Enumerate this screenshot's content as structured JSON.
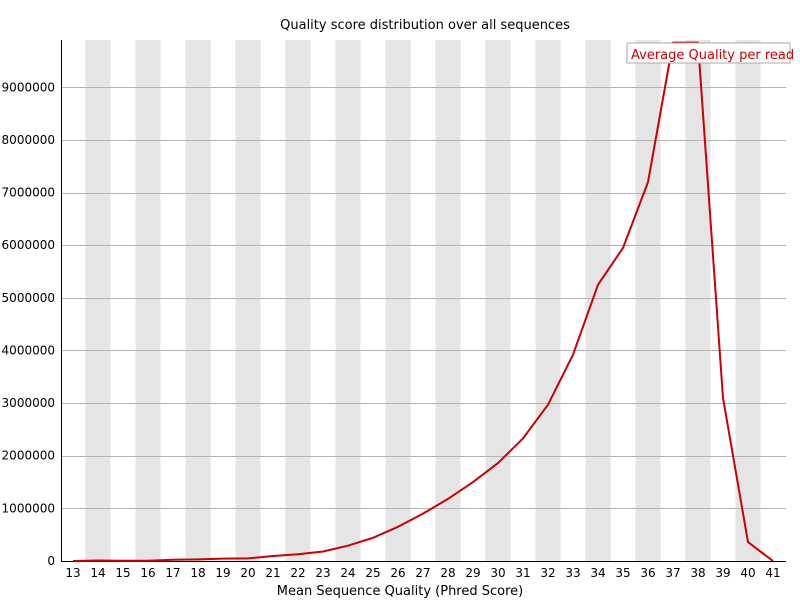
{
  "chart_data": {
    "type": "line",
    "title": "Quality score distribution over all sequences",
    "xlabel": "Mean Sequence Quality (Phred Score)",
    "ylabel": "",
    "x": [
      13,
      14,
      15,
      16,
      17,
      18,
      19,
      20,
      21,
      22,
      23,
      24,
      25,
      26,
      27,
      28,
      29,
      30,
      31,
      32,
      33,
      34,
      35,
      36,
      37,
      38,
      39,
      40,
      41
    ],
    "series": [
      {
        "name": "Average Quality per read",
        "color": "#cc0000",
        "values": [
          0,
          10000,
          5000,
          5000,
          25000,
          30000,
          45000,
          50000,
          95000,
          130000,
          180000,
          290000,
          440000,
          650000,
          900000,
          1180000,
          1500000,
          1860000,
          2330000,
          2970000,
          3920000,
          5250000,
          5950000,
          7200000,
          9850000,
          9850000,
          3100000,
          360000,
          0
        ]
      }
    ],
    "ylim": [
      0,
      9900000
    ],
    "yticks": [
      0,
      1000000,
      2000000,
      3000000,
      4000000,
      5000000,
      6000000,
      7000000,
      8000000,
      9000000
    ],
    "ytick_labels": [
      "0",
      "1000000",
      "2000000",
      "3000000",
      "4000000",
      "5000000",
      "6000000",
      "7000000",
      "8000000",
      "9000000"
    ],
    "xtick_labels": [
      "13",
      "14",
      "15",
      "16",
      "17",
      "18",
      "19",
      "20",
      "21",
      "22",
      "23",
      "24",
      "25",
      "26",
      "27",
      "28",
      "29",
      "30",
      "31",
      "32",
      "33",
      "34",
      "35",
      "36",
      "37",
      "38",
      "39",
      "40",
      "41"
    ],
    "grid": true,
    "alternating_bands": true,
    "legend": {
      "label": "Average Quality per read",
      "position": "top-right",
      "text_color": "#cc0000"
    },
    "colors": {
      "band": "#e5e5e5",
      "grid": "#b4b4b4",
      "axis": "#000000",
      "line": "#cc0000"
    }
  }
}
